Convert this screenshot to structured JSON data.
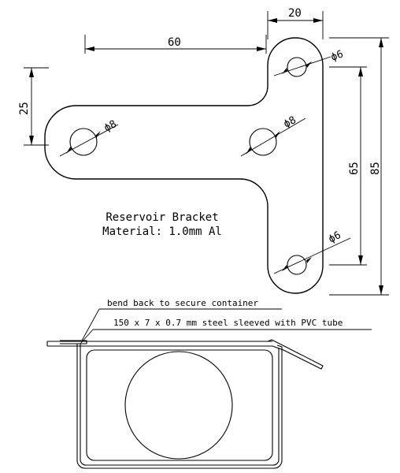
{
  "plan": {
    "dims": {
      "width_60": "60",
      "width_20": "20",
      "height_25": "25",
      "height_65": "65",
      "height_85": "85",
      "hole_top": "ϕ6",
      "hole_left": "ϕ8",
      "hole_center": "ϕ8",
      "hole_bottom": "ϕ6"
    },
    "title": "Reservoir Bracket",
    "material": "Material: 1.0mm Al"
  },
  "section": {
    "note_bend": "bend back to secure container",
    "note_strap": "150 x 7 x 0.7 mm steel sleeved with PVC tube"
  }
}
